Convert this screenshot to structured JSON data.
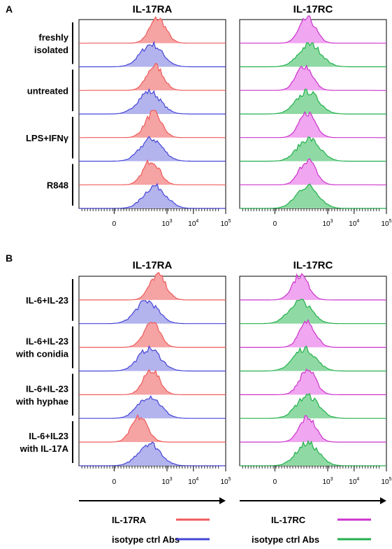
{
  "panels": [
    {
      "letter": "A",
      "titles": [
        "IL-17RA",
        "IL-17RC"
      ],
      "groups": [
        "freshly|isolated",
        "untreated",
        "LPS+IFNγ",
        "R848"
      ],
      "ticks": [
        "0",
        "10^3",
        "10^4",
        "10^5"
      ]
    },
    {
      "letter": "B",
      "titles": [
        "IL-17RA",
        "IL-17RC"
      ],
      "groups": [
        "IL-6+IL-23",
        "IL-6+IL-23|with conidia",
        "IL-6+IL-23|with hyphae",
        "IL-6+IL23|with IL-17A"
      ],
      "ticks": [
        "0",
        "10^3",
        "10^4",
        "10^5"
      ]
    }
  ],
  "legend": [
    {
      "label": "IL-17RA",
      "color": "#f05a5a"
    },
    {
      "label": "IL-17RC",
      "color": "#cc33cc"
    },
    {
      "label": "isotype ctrl Abs",
      "color": "#4545d8"
    },
    {
      "label": "isotype ctrl Abs",
      "color": "#22b14c"
    }
  ],
  "colors": {
    "IL-17RA_line": "#f05a5a",
    "IL-17RA_fill": "#f5a3a3",
    "IL-17RC_line": "#cc33cc",
    "IL-17RC_fill": "#f0a6f0",
    "isoA_line": "#4545d8",
    "isoA_fill": "#b3b3ee",
    "isoC_line": "#22b14c",
    "isoC_fill": "#8fd9a4"
  },
  "chart_data": [
    {
      "type": "area",
      "panel": "A",
      "title": "IL-17RA",
      "xscale": "biexponential",
      "x_ticks": [
        "0",
        "10^3",
        "10^4",
        "10^5"
      ],
      "series": [
        {
          "name": "freshly isolated",
          "stain": "IL-17RA",
          "peak_x": 500
        },
        {
          "name": "freshly isolated",
          "stain": "isotype ctrl Abs",
          "peak_x": 300
        },
        {
          "name": "untreated",
          "stain": "IL-17RA",
          "peak_x": 400
        },
        {
          "name": "untreated",
          "stain": "isotype ctrl Abs",
          "peak_x": 250
        },
        {
          "name": "LPS+IFNγ",
          "stain": "IL-17RA",
          "peak_x": 350
        },
        {
          "name": "LPS+IFNγ",
          "stain": "isotype ctrl Abs",
          "peak_x": 300
        },
        {
          "name": "R848",
          "stain": "IL-17RA",
          "peak_x": 300
        },
        {
          "name": "R848",
          "stain": "isotype ctrl Abs",
          "peak_x": 400
        }
      ]
    },
    {
      "type": "area",
      "panel": "A",
      "title": "IL-17RC",
      "xscale": "biexponential",
      "x_ticks": [
        "0",
        "10^3",
        "10^4",
        "10^5"
      ],
      "series": [
        {
          "name": "freshly isolated",
          "stain": "IL-17RC",
          "peak_x": 200
        },
        {
          "name": "freshly isolated",
          "stain": "isotype ctrl Abs",
          "peak_x": 250
        },
        {
          "name": "untreated",
          "stain": "IL-17RC",
          "peak_x": 150
        },
        {
          "name": "untreated",
          "stain": "isotype ctrl Abs",
          "peak_x": 200
        },
        {
          "name": "LPS+IFNγ",
          "stain": "IL-17RC",
          "peak_x": 200
        },
        {
          "name": "LPS+IFNγ",
          "stain": "isotype ctrl Abs",
          "peak_x": 220
        },
        {
          "name": "R848",
          "stain": "IL-17RC",
          "peak_x": 200
        },
        {
          "name": "R848",
          "stain": "isotype ctrl Abs",
          "peak_x": 200
        }
      ]
    },
    {
      "type": "area",
      "panel": "B",
      "title": "IL-17RA",
      "xscale": "biexponential",
      "x_ticks": [
        "0",
        "10^3",
        "10^4",
        "10^5"
      ],
      "series": [
        {
          "name": "IL-6+IL-23",
          "stain": "IL-17RA",
          "peak_x": 500
        },
        {
          "name": "IL-6+IL-23",
          "stain": "isotype ctrl Abs",
          "peak_x": 200
        },
        {
          "name": "IL-6+IL-23 with conidia",
          "stain": "IL-17RA",
          "peak_x": 300
        },
        {
          "name": "IL-6+IL-23 with conidia",
          "stain": "isotype ctrl Abs",
          "peak_x": 250
        },
        {
          "name": "IL-6+IL-23 with hyphae",
          "stain": "IL-17RA",
          "peak_x": 300
        },
        {
          "name": "IL-6+IL-23 with hyphae",
          "stain": "isotype ctrl Abs",
          "peak_x": 250
        },
        {
          "name": "IL-6+IL23 with IL-17A",
          "stain": "IL-17RA",
          "peak_x": 100
        },
        {
          "name": "IL-6+IL23 with IL-17A",
          "stain": "isotype ctrl Abs",
          "peak_x": 250
        }
      ]
    },
    {
      "type": "area",
      "panel": "B",
      "title": "IL-17RC",
      "xscale": "biexponential",
      "x_ticks": [
        "0",
        "10^3",
        "10^4",
        "10^5"
      ],
      "series": [
        {
          "name": "IL-6+IL-23",
          "stain": "IL-17RC",
          "peak_x": 100
        },
        {
          "name": "IL-6+IL-23",
          "stain": "isotype ctrl Abs",
          "peak_x": 100
        },
        {
          "name": "IL-6+IL-23 with conidia",
          "stain": "IL-17RC",
          "peak_x": 200
        },
        {
          "name": "IL-6+IL-23 with conidia",
          "stain": "isotype ctrl Abs",
          "peak_x": 150
        },
        {
          "name": "IL-6+IL-23 with hyphae",
          "stain": "IL-17RC",
          "peak_x": 200
        },
        {
          "name": "IL-6+IL-23 with hyphae",
          "stain": "isotype ctrl Abs",
          "peak_x": 200
        },
        {
          "name": "IL-6+IL23 with IL-17A",
          "stain": "IL-17RC",
          "peak_x": 200
        },
        {
          "name": "IL-6+IL23 with IL-17A",
          "stain": "isotype ctrl Abs",
          "peak_x": 200
        }
      ]
    }
  ]
}
